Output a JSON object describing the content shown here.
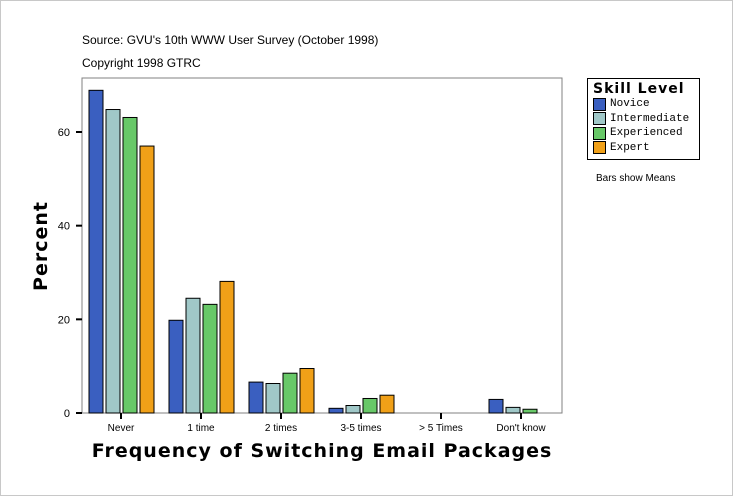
{
  "header": {
    "source": "Source: GVU's 10th WWW User Survey (October 1998)",
    "copyright": "Copyright 1998 GTRC"
  },
  "note": "Bars show Means",
  "chart_data": {
    "type": "bar",
    "xlabel": "Frequency of Switching Email Packages",
    "ylabel": "Percent",
    "ylim": [
      0,
      70
    ],
    "yticks": [
      0,
      20,
      40,
      60
    ],
    "grid": false,
    "legend_position": "right",
    "legend_title": "Skill Level",
    "categories": [
      "Never",
      "1 time",
      "2 times",
      "3-5 times",
      "> 5 Times",
      "Don't know"
    ],
    "series": [
      {
        "name": "Novice",
        "color": "#3a5fc0",
        "values": [
          68.9,
          19.8,
          6.6,
          1.0,
          null,
          2.9
        ]
      },
      {
        "name": "Intermediate",
        "color": "#a0c8c8",
        "values": [
          64.8,
          24.5,
          6.3,
          1.6,
          null,
          1.2
        ]
      },
      {
        "name": "Experienced",
        "color": "#68c868",
        "values": [
          63.1,
          23.2,
          8.5,
          3.1,
          null,
          0.8
        ]
      },
      {
        "name": "Expert",
        "color": "#f0a018",
        "values": [
          57.0,
          28.1,
          9.5,
          3.8,
          null,
          null
        ]
      }
    ]
  }
}
